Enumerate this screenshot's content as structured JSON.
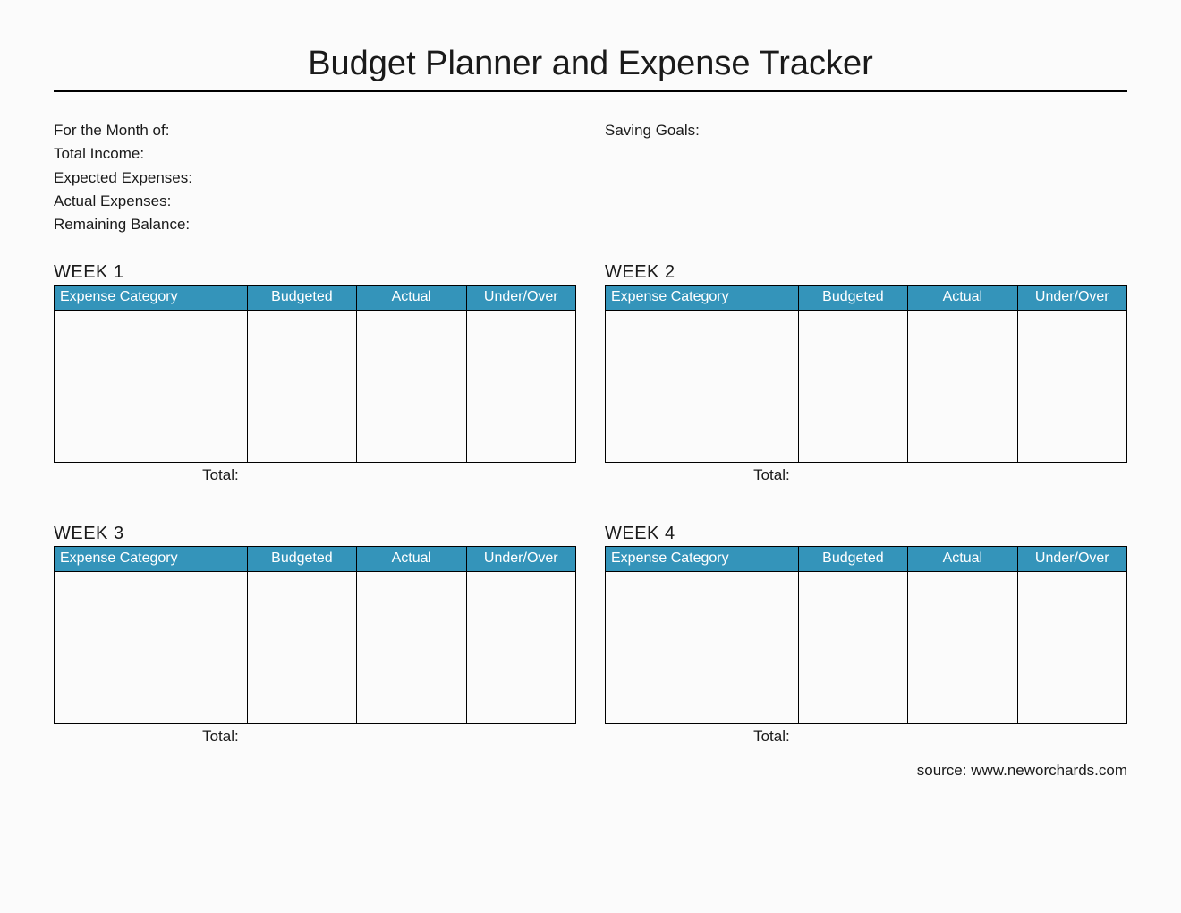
{
  "title": "Budget Planner and Expense Tracker",
  "fields_left": [
    "For the Month of:",
    "Total Income:",
    "Expected Expenses:",
    "Actual Expenses:",
    "Remaining Balance:"
  ],
  "fields_right": [
    "Saving Goals:"
  ],
  "columns": {
    "category": "Expense Category",
    "budgeted": "Budgeted",
    "actual": "Actual",
    "under_over": "Under/Over"
  },
  "weeks": [
    {
      "title": "WEEK 1",
      "total_label": "Total:"
    },
    {
      "title": "WEEK 2",
      "total_label": "Total:"
    },
    {
      "title": "WEEK 3",
      "total_label": "Total:"
    },
    {
      "title": "WEEK 4",
      "total_label": "Total:"
    }
  ],
  "source": "source: www.neworchards.com",
  "colors": {
    "header_bg": "#3494ba",
    "header_text": "#ffffff",
    "border": "#000000",
    "page_bg": "#fbfbfb",
    "text": "#1a1a1a"
  }
}
